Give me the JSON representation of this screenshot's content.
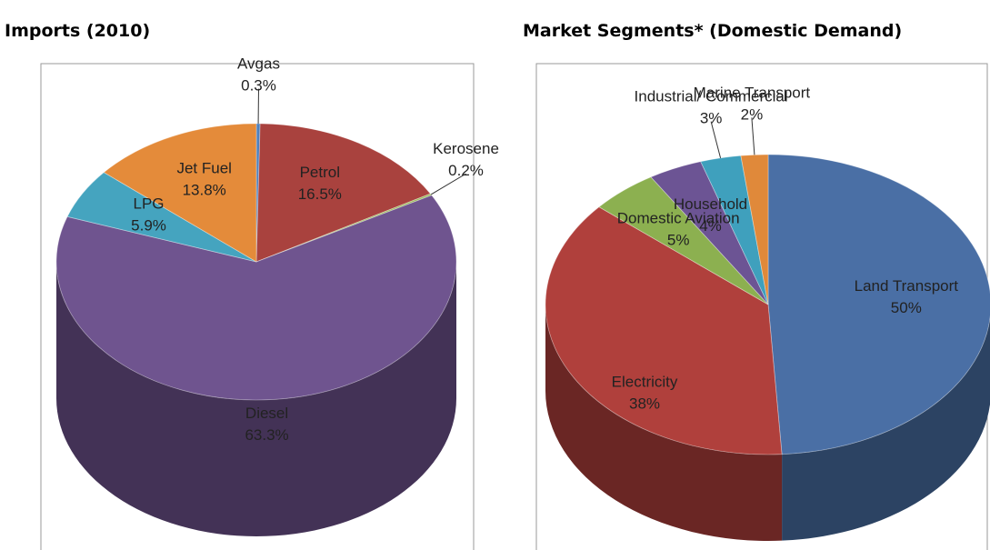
{
  "chart_data": [
    {
      "type": "pie",
      "title": "Imports (2010)",
      "categories": [
        "Avgas",
        "Petrol",
        "Kerosene",
        "Diesel",
        "LPG",
        "Jet Fuel"
      ],
      "values": [
        0.3,
        16.5,
        0.2,
        63.3,
        5.9,
        13.8
      ],
      "value_labels": [
        "0.3%",
        "16.5%",
        "0.2%",
        "63.3%",
        "5.9%",
        "13.8%"
      ],
      "colors": [
        "#4f81bd",
        "#a9423e",
        "#9bbb59",
        "#6f548f",
        "#45a4bf",
        "#e48b3a"
      ]
    },
    {
      "type": "pie",
      "title": "Market Segments* (Domestic Demand)",
      "categories": [
        "Land Transport",
        "Electricity",
        "Domestic Aviation",
        "Household",
        "Industrial/ Commercial",
        "Marine Transport"
      ],
      "values": [
        50,
        38,
        5,
        4,
        3,
        2
      ],
      "value_labels": [
        "50%",
        "38%",
        "5%",
        "4%",
        "3%",
        "2%"
      ],
      "colors": [
        "#4a6fa5",
        "#b0403c",
        "#8cb050",
        "#6c5494",
        "#3fa0bd",
        "#e0893a"
      ]
    }
  ]
}
